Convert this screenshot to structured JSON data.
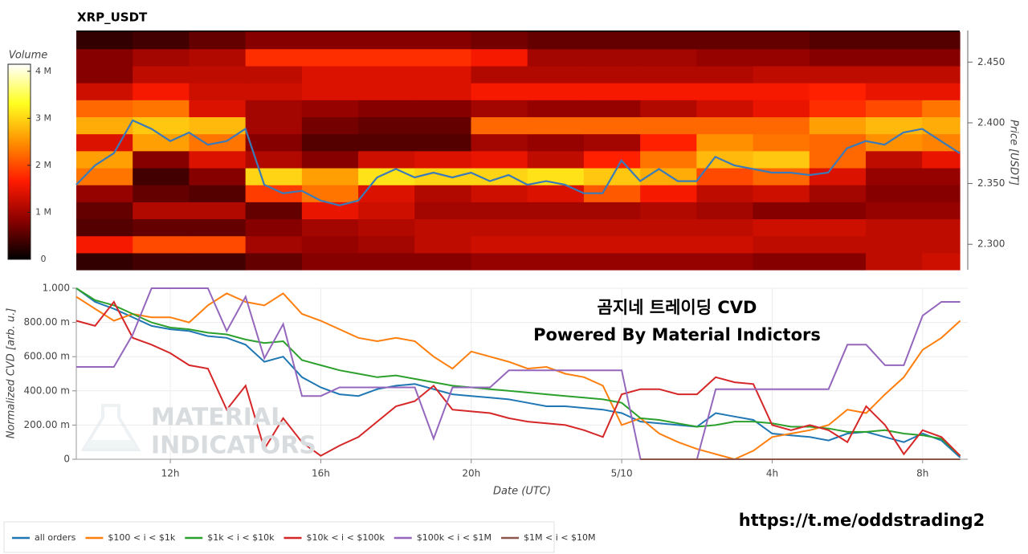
{
  "chart_data": [
    {
      "type": "heatmap",
      "title": "XRP_USDT",
      "ylabel": "Price [USDT]",
      "colorbar_label": "Volume",
      "xlim": [
        9.5,
        33.0
      ],
      "ylim": [
        2.279,
        2.476
      ],
      "yticks": [
        {
          "value": 2.3,
          "label": "2.300"
        },
        {
          "value": 2.35,
          "label": "2.350"
        },
        {
          "value": 2.4,
          "label": "2.400"
        },
        {
          "value": 2.45,
          "label": "2.450"
        }
      ],
      "clim": [
        0,
        4.15
      ],
      "cticks": [
        0,
        {
          "value": 1,
          "label": "1 M"
        },
        {
          "value": 2,
          "label": "2 M"
        },
        {
          "value": 3,
          "label": "3 M"
        },
        {
          "value": 4,
          "label": "4 M"
        }
      ],
      "colorscale": [
        "#000000",
        "#8b0000",
        "#ff1a00",
        "#ff9000",
        "#ffff20",
        "#ffffff"
      ],
      "x_bins": [
        9.5,
        11,
        12.5,
        14,
        15.5,
        17,
        18.5,
        20,
        21.5,
        23,
        24.5,
        26,
        27.5,
        29,
        30.5,
        32,
        33.0
      ],
      "y_bins": [
        2.279,
        2.293,
        2.307,
        2.321,
        2.335,
        2.349,
        2.363,
        2.377,
        2.391,
        2.405,
        2.419,
        2.433,
        2.447,
        2.461,
        2.475
      ],
      "volume": [
        [
          0.3,
          0.4,
          0.4,
          0.6,
          0.8,
          0.8,
          0.8,
          0.9,
          0.9,
          0.9,
          0.9,
          0.9,
          0.8,
          0.8,
          1.2,
          1.3
        ],
        [
          1.6,
          2.0,
          2.0,
          1.0,
          0.9,
          1.0,
          1.2,
          1.3,
          1.3,
          1.3,
          1.3,
          1.3,
          1.2,
          1.2,
          1.2,
          1.2
        ],
        [
          0.5,
          0.6,
          0.6,
          0.8,
          1.0,
          1.1,
          1.2,
          1.2,
          1.2,
          1.2,
          1.2,
          1.2,
          1.3,
          1.3,
          1.2,
          1.2
        ],
        [
          0.6,
          1.1,
          1.1,
          0.6,
          1.5,
          1.3,
          1.0,
          1.0,
          1.0,
          1.0,
          1.1,
          1.0,
          0.8,
          0.8,
          0.9,
          0.9
        ],
        [
          0.9,
          0.6,
          0.5,
          1.9,
          2.3,
          1.4,
          1.1,
          1.3,
          1.4,
          2.1,
          1.6,
          1.2,
          1.3,
          1.0,
          0.8,
          0.8
        ],
        [
          2.3,
          0.4,
          0.8,
          3.0,
          2.6,
          3.1,
          3.0,
          3.0,
          3.1,
          2.9,
          2.7,
          2.0,
          2.2,
          1.4,
          0.9,
          0.9
        ],
        [
          2.6,
          0.8,
          1.4,
          1.1,
          0.8,
          1.3,
          1.4,
          1.5,
          1.2,
          1.7,
          2.3,
          2.8,
          2.9,
          2.2,
          1.2,
          1.5
        ],
        [
          1.4,
          2.6,
          2.3,
          0.8,
          0.5,
          0.5,
          0.5,
          1.0,
          0.9,
          1.0,
          1.7,
          2.5,
          2.3,
          2.2,
          2.5,
          2.4
        ],
        [
          2.7,
          2.9,
          2.8,
          1.0,
          0.7,
          0.6,
          0.6,
          2.2,
          2.2,
          2.2,
          2.2,
          2.2,
          2.2,
          2.6,
          2.8,
          2.7
        ],
        [
          2.2,
          2.3,
          1.4,
          1.0,
          0.9,
          0.8,
          0.8,
          1.0,
          0.9,
          0.9,
          1.1,
          1.3,
          1.5,
          1.8,
          2.0,
          2.3
        ],
        [
          1.3,
          1.6,
          1.3,
          1.3,
          1.4,
          1.4,
          1.4,
          1.6,
          1.6,
          1.6,
          1.6,
          1.6,
          1.6,
          1.7,
          1.5,
          1.5
        ],
        [
          0.8,
          1.2,
          1.2,
          1.2,
          1.4,
          1.4,
          1.4,
          1.1,
          1.1,
          1.1,
          1.1,
          1.1,
          1.2,
          1.2,
          1.2,
          1.2
        ],
        [
          0.8,
          1.0,
          1.1,
          1.8,
          1.8,
          1.8,
          1.8,
          1.6,
          1.0,
          1.0,
          1.0,
          0.9,
          0.9,
          0.8,
          0.8,
          0.8
        ],
        [
          0.3,
          0.4,
          0.6,
          0.8,
          0.8,
          0.8,
          0.8,
          0.7,
          0.6,
          0.6,
          0.6,
          0.6,
          0.6,
          0.5,
          0.5,
          0.5
        ]
      ],
      "x": [
        9.5,
        10,
        10.5,
        11,
        11.5,
        12,
        12.5,
        13,
        13.5,
        14,
        14.5,
        15,
        15.5,
        16,
        16.5,
        17,
        17.5,
        18,
        18.5,
        19,
        19.5,
        20,
        20.5,
        21,
        21.5,
        22,
        22.5,
        23,
        23.5,
        24,
        24.5,
        25,
        25.5,
        26,
        26.5,
        27,
        27.5,
        28,
        28.5,
        29,
        29.5,
        30,
        30.5,
        31,
        31.5,
        32,
        32.5,
        33
      ],
      "series": [
        {
          "color": "#3a7ab8",
          "values": [
            2.349,
            2.365,
            2.375,
            2.402,
            2.395,
            2.385,
            2.392,
            2.382,
            2.385,
            2.395,
            2.349,
            2.342,
            2.344,
            2.336,
            2.332,
            2.336,
            2.355,
            2.362,
            2.355,
            2.359,
            2.355,
            2.359,
            2.352,
            2.357,
            2.349,
            2.352,
            2.349,
            2.342,
            2.342,
            2.369,
            2.352,
            2.362,
            2.352,
            2.352,
            2.372,
            2.365,
            2.362,
            2.359,
            2.359,
            2.357,
            2.359,
            2.379,
            2.385,
            2.382,
            2.392,
            2.395,
            2.385,
            2.375
          ]
        }
      ]
    },
    {
      "type": "line",
      "xlabel": "Date (UTC)",
      "ylabel": "Normalized CVD [arb. u.]",
      "xlim": [
        9.5,
        33.2
      ],
      "ylim": [
        0,
        1
      ],
      "xticks": [
        {
          "value": 12,
          "label": "12h"
        },
        {
          "value": 16,
          "label": "16h"
        },
        {
          "value": 20,
          "label": "20h"
        },
        {
          "value": 24,
          "label": "5/10"
        },
        {
          "value": 28,
          "label": "4h"
        },
        {
          "value": 32,
          "label": "8h"
        }
      ],
      "yticks": [
        0,
        {
          "value": 0.2,
          "label": "200.00 m"
        },
        {
          "value": 0.4,
          "label": "400.00 m"
        },
        {
          "value": 0.6,
          "label": "600.00 m"
        },
        {
          "value": 0.8,
          "label": "800.00 m"
        },
        {
          "value": 1,
          "label": "1.000"
        }
      ],
      "grid": true,
      "legend": "bottom-left",
      "annotations": [
        "곰지네 트레이딩 CVD",
        "Powered By Material Indictors"
      ],
      "watermark": [
        "MATERIAL",
        "INDICATORS"
      ],
      "x": [
        9.5,
        10,
        10.5,
        11,
        11.5,
        12,
        12.5,
        13,
        13.5,
        14,
        14.5,
        15,
        15.5,
        16,
        16.5,
        17,
        17.5,
        18,
        18.5,
        19,
        19.5,
        20,
        20.5,
        21,
        21.5,
        22,
        22.5,
        23,
        23.5,
        24,
        24.5,
        25,
        25.5,
        26,
        26.5,
        27,
        27.5,
        28,
        28.5,
        29,
        29.5,
        30,
        30.5,
        31,
        31.5,
        32,
        32.5,
        33
      ],
      "series": [
        {
          "name": "all orders",
          "color": "#1f77b4",
          "values": [
            1.0,
            0.92,
            0.88,
            0.83,
            0.78,
            0.76,
            0.75,
            0.72,
            0.71,
            0.67,
            0.57,
            0.6,
            0.48,
            0.42,
            0.38,
            0.37,
            0.41,
            0.43,
            0.44,
            0.41,
            0.38,
            0.37,
            0.36,
            0.35,
            0.33,
            0.31,
            0.31,
            0.3,
            0.29,
            0.27,
            0.22,
            0.21,
            0.2,
            0.19,
            0.27,
            0.25,
            0.23,
            0.15,
            0.14,
            0.13,
            0.11,
            0.15,
            0.16,
            0.13,
            0.1,
            0.15,
            0.11,
            0.01
          ]
        },
        {
          "name": "$100 < i < $1k",
          "color": "#ff7f0e",
          "values": [
            0.95,
            0.88,
            0.81,
            0.85,
            0.83,
            0.83,
            0.8,
            0.9,
            0.97,
            0.92,
            0.9,
            0.97,
            0.85,
            0.81,
            0.76,
            0.71,
            0.69,
            0.71,
            0.69,
            0.6,
            0.53,
            0.63,
            0.6,
            0.57,
            0.53,
            0.54,
            0.5,
            0.48,
            0.43,
            0.2,
            0.24,
            0.15,
            0.1,
            0.06,
            0.03,
            0.0,
            0.05,
            0.13,
            0.15,
            0.17,
            0.2,
            0.29,
            0.27,
            0.38,
            0.48,
            0.64,
            0.71,
            0.81
          ]
        },
        {
          "name": "$1k < i < $10k",
          "color": "#2ca02c",
          "values": [
            1.0,
            0.93,
            0.9,
            0.85,
            0.8,
            0.77,
            0.76,
            0.74,
            0.73,
            0.7,
            0.68,
            0.69,
            0.58,
            0.55,
            0.52,
            0.5,
            0.48,
            0.49,
            0.47,
            0.45,
            0.43,
            0.42,
            0.41,
            0.4,
            0.39,
            0.38,
            0.37,
            0.36,
            0.35,
            0.33,
            0.24,
            0.23,
            0.21,
            0.19,
            0.2,
            0.22,
            0.22,
            0.21,
            0.19,
            0.19,
            0.18,
            0.16,
            0.16,
            0.17,
            0.15,
            0.14,
            0.12,
            0.02
          ]
        },
        {
          "name": "$10k < i < $100k",
          "color": "#d62728",
          "values": [
            0.81,
            0.78,
            0.92,
            0.71,
            0.67,
            0.62,
            0.55,
            0.53,
            0.29,
            0.43,
            0.06,
            0.24,
            0.1,
            0.02,
            0.08,
            0.13,
            0.22,
            0.31,
            0.34,
            0.43,
            0.29,
            0.28,
            0.27,
            0.24,
            0.22,
            0.21,
            0.2,
            0.17,
            0.13,
            0.38,
            0.41,
            0.41,
            0.38,
            0.38,
            0.48,
            0.45,
            0.44,
            0.2,
            0.17,
            0.2,
            0.17,
            0.1,
            0.31,
            0.2,
            0.03,
            0.17,
            0.13,
            0.02
          ]
        },
        {
          "name": "$100k < i < $1M",
          "color": "#9467bd",
          "values": [
            0.54,
            0.54,
            0.54,
            0.73,
            1.0,
            1.0,
            1.0,
            1.0,
            0.75,
            0.95,
            0.59,
            0.79,
            0.37,
            0.37,
            0.42,
            0.42,
            0.42,
            0.42,
            0.42,
            0.12,
            0.42,
            0.42,
            0.42,
            0.52,
            0.52,
            0.52,
            0.52,
            0.52,
            0.52,
            0.52,
            0.0,
            0.0,
            0.0,
            0.0,
            0.41,
            0.41,
            0.41,
            0.41,
            0.41,
            0.41,
            0.41,
            0.67,
            0.67,
            0.55,
            0.55,
            0.84,
            0.92,
            0.92
          ]
        },
        {
          "name": "$1M < i < $10M",
          "color": "#8c564b",
          "values": [
            null,
            null,
            null,
            null,
            null,
            null,
            null,
            null,
            null,
            null,
            null,
            null,
            null,
            null,
            null,
            null,
            null,
            null,
            null,
            null,
            null,
            null,
            null,
            null,
            null,
            null,
            null,
            null,
            null,
            null,
            0,
            0,
            0,
            0,
            0,
            0,
            0,
            0,
            0,
            0,
            0,
            0,
            0,
            0,
            0,
            0,
            0,
            0
          ]
        }
      ]
    }
  ],
  "footer_text": "https://t.me/oddstrading2"
}
